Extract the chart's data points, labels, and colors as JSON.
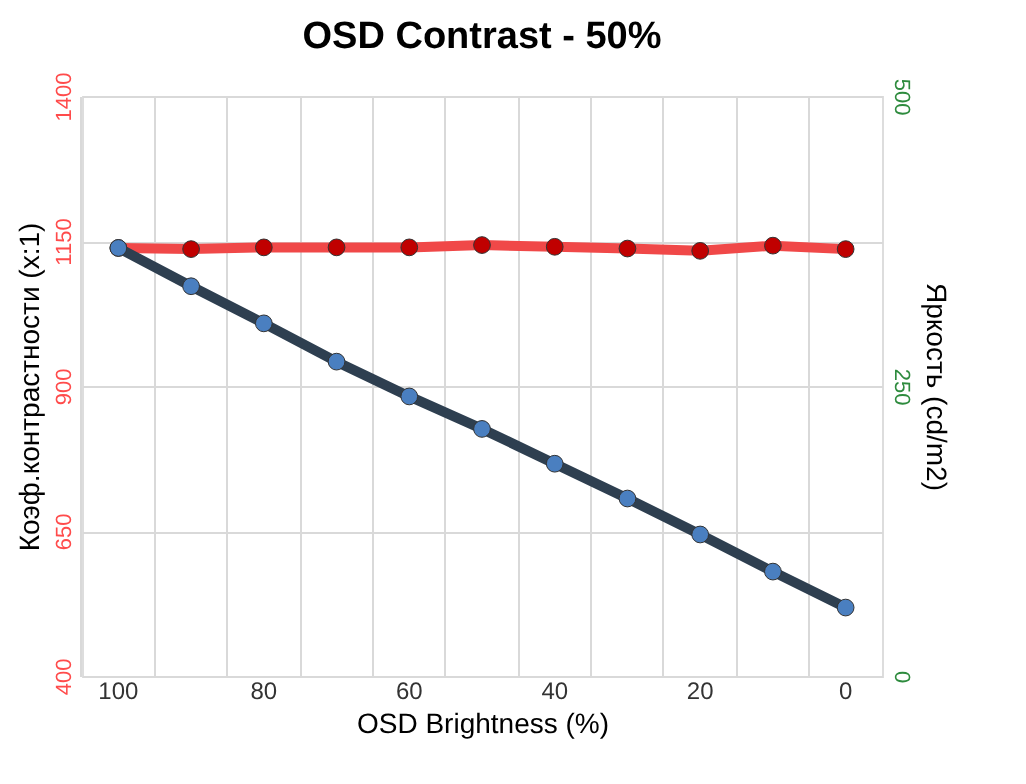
{
  "chart_data": {
    "type": "line",
    "title": "OSD Contrast - 50%",
    "xlabel": "OSD Brightness (%)",
    "ylabel": "Коэф.контрастности (x:1)",
    "y2label": "Яркость (cd/m2)",
    "categories": [
      "100",
      null,
      "80",
      null,
      "60",
      null,
      "40",
      null,
      "20",
      null,
      "0"
    ],
    "series": [
      {
        "color": "#f04848",
        "values": [
          1138,
          1136,
          1139,
          1139,
          1139,
          1143,
          1140,
          1137,
          1133,
          1142,
          1136
        ]
      },
      {
        "color": "#2e3f50",
        "axis": "y2",
        "values": [
          369,
          336,
          304,
          271,
          241,
          213,
          183,
          153,
          122,
          90,
          59
        ]
      }
    ],
    "ylim": [
      400,
      1400
    ],
    "yticks": [
      400,
      650,
      900,
      1150,
      1400
    ],
    "y2lim": [
      0,
      500
    ],
    "y2ticks": [
      0,
      250,
      500
    ],
    "grid": true,
    "marker": "circle",
    "line_style": "solid"
  }
}
